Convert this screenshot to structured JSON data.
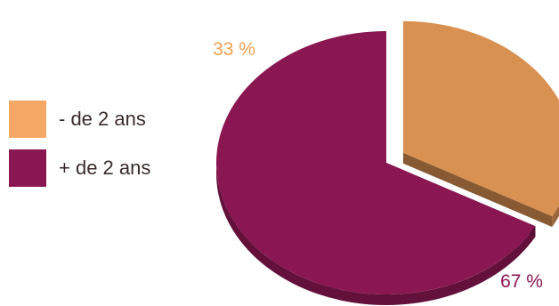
{
  "chart_data": {
    "type": "pie",
    "title": "",
    "categories": [
      "- de 2 ans",
      "+ de 2 ans"
    ],
    "values": [
      33,
      67
    ],
    "data_labels": [
      "33 %",
      "67 %"
    ],
    "colors": [
      "#D99152",
      "#8A1652"
    ],
    "legend_colors": [
      "#F5A765",
      "#8A1652"
    ],
    "label_colors": [
      "#F0A050",
      "#8A1652"
    ],
    "exploded_slice": "- de 2 ans",
    "three_d": true,
    "legend_placement": "left"
  }
}
